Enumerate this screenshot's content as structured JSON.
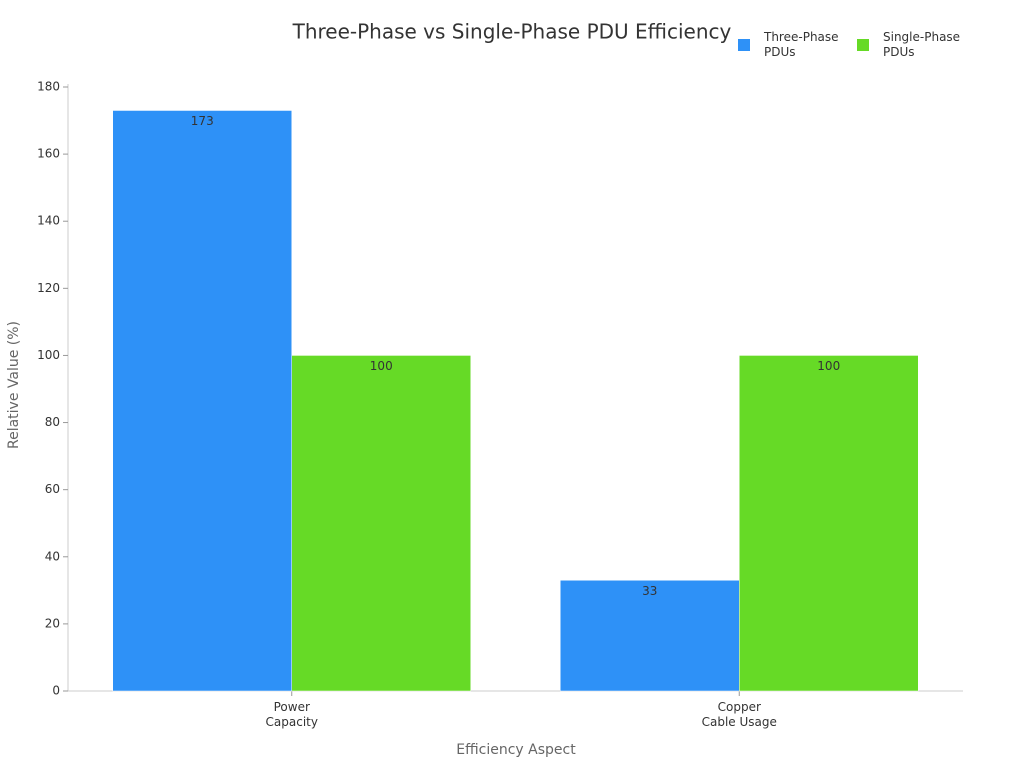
{
  "chart_data": {
    "type": "bar",
    "title": "Three-Phase vs Single-Phase PDU Efficiency",
    "x_label": "Efficiency Aspect",
    "y_label": "Relative Value (%)",
    "categories": [
      "Power\nCapacity",
      "Copper\nCable Usage"
    ],
    "series": [
      {
        "name": "Three-Phase\nPDUs",
        "color": "#2e91f7",
        "values": [
          173,
          33
        ]
      },
      {
        "name": "Single-Phase\nPDUs",
        "color": "#66da26",
        "values": [
          100,
          100
        ]
      }
    ],
    "ylim": [
      0,
      180
    ],
    "yticks": [
      0,
      20,
      40,
      60,
      80,
      100,
      120,
      140,
      160,
      180
    ],
    "grid": false,
    "legend": "top-right"
  }
}
